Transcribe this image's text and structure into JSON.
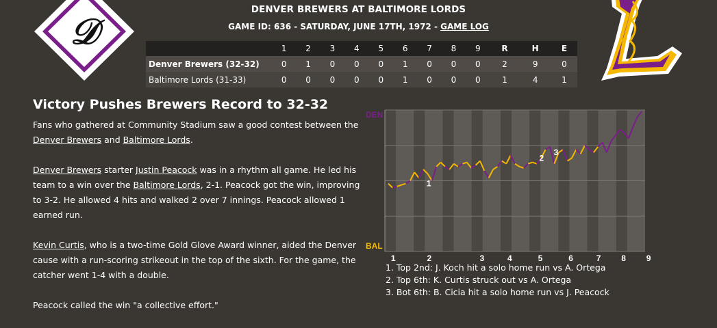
{
  "header": {
    "title": "DENVER BREWERS AT BALTIMORE LORDS",
    "game_info": "GAME ID: 636 - SATURDAY, JUNE 17TH, 1972 - ",
    "game_log_link": "GAME LOG"
  },
  "logos": {
    "left_letter": "D",
    "right_letter": "L"
  },
  "linescore": {
    "innings": [
      "1",
      "2",
      "3",
      "4",
      "5",
      "6",
      "7",
      "8",
      "9"
    ],
    "totals_headers": [
      "R",
      "H",
      "E"
    ],
    "teams": [
      {
        "name": "Denver Brewers (32-32)",
        "innings": [
          "0",
          "1",
          "0",
          "0",
          "0",
          "1",
          "0",
          "0",
          "0"
        ],
        "totals": [
          "2",
          "9",
          "0"
        ]
      },
      {
        "name": "Baltimore Lords (31-33)",
        "innings": [
          "0",
          "0",
          "0",
          "0",
          "0",
          "1",
          "0",
          "0",
          "0"
        ],
        "totals": [
          "1",
          "4",
          "1"
        ]
      }
    ]
  },
  "article": {
    "headline": "Victory Pushes Brewers Record to 32-32",
    "p1": {
      "t1": "Fans who gathered at Community Stadium saw a good contest between the ",
      "l1": "Denver Brewers",
      "t2": " and ",
      "l2": "Baltimore Lords",
      "t3": "."
    },
    "p2": {
      "l1": "Denver Brewers",
      "t1": " starter ",
      "l2": "Justin Peacock",
      "t2": " was in a rhythm all game. He led his team to a win over the ",
      "l3": "Baltimore Lords",
      "t3": ", 2-1. Peacock got the win, improving to 3-2. He allowed 4 hits and walked 2 over 7 innings. Peacock allowed 1 earned run."
    },
    "p3": {
      "l1": "Kevin Curtis",
      "t1": ", who is a two-time Gold Glove Award winner, aided the Denver cause with a run-scoring strikeout in the top of the sixth. For the game, the catcher went 1-4 with a double."
    },
    "p4": "Peacock called the win \"a collective effort.\""
  },
  "win_probability": {
    "top_label": "DEN",
    "bottom_label": "BAL",
    "x_labels": [
      "1",
      "2",
      "3",
      "4",
      "5",
      "6",
      "7",
      "8",
      "9"
    ],
    "colors": {
      "den": "#7a1f8a",
      "bal": "#f5b800"
    },
    "markers": [
      {
        "label": "1",
        "x": 1.8,
        "y": 0.48
      },
      {
        "label": "2",
        "x": 5.7,
        "y": 0.66
      },
      {
        "label": "3",
        "x": 6.2,
        "y": 0.7
      }
    ],
    "series": [
      0.48,
      0.45,
      0.46,
      0.47,
      0.48,
      0.5,
      0.56,
      0.52,
      0.58,
      0.55,
      0.5,
      0.6,
      0.63,
      0.6,
      0.58,
      0.62,
      0.6,
      0.62,
      0.63,
      0.59,
      0.61,
      0.64,
      0.57,
      0.52,
      0.58,
      0.6,
      0.64,
      0.62,
      0.68,
      0.62,
      0.6,
      0.59,
      0.62,
      0.63,
      0.62,
      0.66,
      0.72,
      0.74,
      0.62,
      0.7,
      0.72,
      0.64,
      0.66,
      0.72,
      0.69,
      0.75,
      0.72,
      0.7,
      0.74,
      0.77,
      0.7,
      0.78,
      0.82,
      0.86,
      0.84,
      0.8,
      0.88,
      0.95,
      0.99
    ]
  },
  "notes": [
    "1. Top 2nd: J. Koch hit a solo home run vs A. Ortega",
    "2. Top 6th: K. Curtis struck out vs A. Ortega",
    "3. Bot 6th: B. Cicia hit a solo home run vs J. Peacock"
  ]
}
